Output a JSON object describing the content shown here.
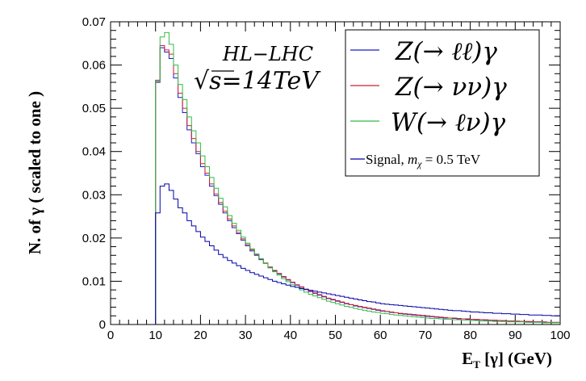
{
  "chart_data": {
    "type": "line",
    "style": "step-histogram",
    "title": "",
    "xlabel_main": "E",
    "xlabel_sub": "T",
    "xlabel_rest": " [γ] (GeV)",
    "ylabel": "N. of  γ  ( scaled to one )",
    "xlim": [
      0,
      100
    ],
    "ylim": [
      0,
      0.07
    ],
    "xticks": [
      "0",
      "10",
      "20",
      "30",
      "40",
      "50",
      "60",
      "70",
      "80",
      "90",
      "100"
    ],
    "yticks": [
      "0",
      "0.01",
      "0.02",
      "0.03",
      "0.04",
      "0.05",
      "0.06",
      "0.07"
    ],
    "annotation_line1": "HL−LHC",
    "annotation_sqrt": "√s",
    "annotation_eq": "=14TeV",
    "legend_position": "top-right",
    "series": [
      {
        "name": "Z(→ ℓℓ)γ",
        "color": "#1a1acc",
        "bin_width": 1,
        "x_start": 10,
        "values": [
          0.056,
          0.064,
          0.063,
          0.0615,
          0.057,
          0.0525,
          0.049,
          0.045,
          0.042,
          0.0395,
          0.0365,
          0.0345,
          0.032,
          0.0298,
          0.0278,
          0.0258,
          0.024,
          0.0224,
          0.021,
          0.0195,
          0.0182,
          0.017,
          0.016,
          0.015,
          0.0141,
          0.0132,
          0.0124,
          0.0117,
          0.011,
          0.0103,
          0.0097,
          0.0091,
          0.0086,
          0.0081,
          0.0076,
          0.0072,
          0.0068,
          0.0064,
          0.006,
          0.0057,
          0.0054,
          0.0051,
          0.0048,
          0.0046,
          0.0043,
          0.0041,
          0.0039,
          0.0037,
          0.0035,
          0.0033,
          0.0031,
          0.003,
          0.0028,
          0.0027,
          0.0025,
          0.0024,
          0.0023,
          0.0022,
          0.0021,
          0.002,
          0.0019,
          0.0018,
          0.0017,
          0.0016,
          0.0015,
          0.0015,
          0.0014,
          0.0013,
          0.0013,
          0.0012,
          0.0012,
          0.0011,
          0.0011,
          0.001,
          0.001,
          0.0009,
          0.0009,
          0.0008,
          0.0008,
          0.0008,
          0.0007,
          0.0007,
          0.0007,
          0.0006,
          0.0006,
          0.0006,
          0.0005,
          0.0005,
          0.0005,
          0.0005
        ]
      },
      {
        "name": "Z(→ νν)γ",
        "color": "#cc2233",
        "bin_width": 1,
        "x_start": 10,
        "values": [
          0.0565,
          0.0645,
          0.0635,
          0.0625,
          0.058,
          0.0535,
          0.05,
          0.046,
          0.043,
          0.04,
          0.0372,
          0.035,
          0.0325,
          0.0302,
          0.0282,
          0.0262,
          0.0244,
          0.0228,
          0.0213,
          0.0198,
          0.0185,
          0.0173,
          0.0162,
          0.0152,
          0.0142,
          0.0133,
          0.0125,
          0.0118,
          0.0111,
          0.0104,
          0.0098,
          0.0092,
          0.0087,
          0.0082,
          0.0077,
          0.0073,
          0.0069,
          0.0065,
          0.0061,
          0.0058,
          0.0055,
          0.0052,
          0.0049,
          0.0046,
          0.0044,
          0.0042,
          0.004,
          0.0038,
          0.0036,
          0.0034,
          0.0032,
          0.003,
          0.0029,
          0.0027,
          0.0026,
          0.0025,
          0.0024,
          0.0023,
          0.0022,
          0.0021,
          0.002,
          0.0019,
          0.0018,
          0.0017,
          0.0016,
          0.0015,
          0.0015,
          0.0014,
          0.0013,
          0.0013,
          0.0012,
          0.0012,
          0.0011,
          0.0011,
          0.001,
          0.001,
          0.0009,
          0.0009,
          0.0008,
          0.0008,
          0.0008,
          0.0007,
          0.0007,
          0.0007,
          0.0006,
          0.0006,
          0.0006,
          0.0005,
          0.0005,
          0.0005
        ]
      },
      {
        "name": "W(→ ℓν)γ",
        "color": "#33bb44",
        "bin_width": 1,
        "x_start": 10,
        "values": [
          0.0562,
          0.0665,
          0.0675,
          0.0648,
          0.06,
          0.0555,
          0.052,
          0.048,
          0.0448,
          0.042,
          0.039,
          0.0365,
          0.034,
          0.0315,
          0.0292,
          0.0272,
          0.0252,
          0.0234,
          0.0218,
          0.0202,
          0.0188,
          0.0175,
          0.0163,
          0.0152,
          0.0141,
          0.0131,
          0.0122,
          0.0114,
          0.0106,
          0.0099,
          0.0092,
          0.0086,
          0.008,
          0.0075,
          0.007,
          0.0066,
          0.0062,
          0.0058,
          0.0054,
          0.0051,
          0.0048,
          0.0045,
          0.0042,
          0.004,
          0.0037,
          0.0035,
          0.0033,
          0.0031,
          0.0029,
          0.0028,
          0.0026,
          0.0025,
          0.0023,
          0.0022,
          0.0021,
          0.002,
          0.0019,
          0.0018,
          0.0017,
          0.0016,
          0.0015,
          0.0014,
          0.0014,
          0.0013,
          0.0012,
          0.0012,
          0.0011,
          0.0011,
          0.001,
          0.001,
          0.0009,
          0.0009,
          0.0008,
          0.0008,
          0.0008,
          0.0007,
          0.0007,
          0.0007,
          0.0006,
          0.0006,
          0.0006,
          0.0006,
          0.0005,
          0.0005,
          0.0005,
          0.0005,
          0.0004,
          0.0004,
          0.0004,
          0.0004
        ]
      },
      {
        "name": "Signal, m_χ = 0.5 TeV",
        "legend_prefix": "Signal, ",
        "legend_m": "m",
        "legend_sub": "χ",
        "legend_suffix": " = 0.5 TeV",
        "color": "#0000aa",
        "bin_width": 1,
        "x_start": 10,
        "values": [
          0.0258,
          0.032,
          0.0325,
          0.031,
          0.029,
          0.027,
          0.0258,
          0.024,
          0.0228,
          0.0215,
          0.0202,
          0.0192,
          0.0182,
          0.0172,
          0.0162,
          0.0155,
          0.0148,
          0.0142,
          0.0136,
          0.013,
          0.0125,
          0.012,
          0.0116,
          0.0112,
          0.0108,
          0.0104,
          0.01,
          0.0097,
          0.0094,
          0.0091,
          0.0088,
          0.0086,
          0.0083,
          0.0081,
          0.0079,
          0.0077,
          0.0075,
          0.0073,
          0.0071,
          0.0069,
          0.0067,
          0.0065,
          0.0063,
          0.0061,
          0.0059,
          0.0057,
          0.0055,
          0.0053,
          0.0052,
          0.005,
          0.0048,
          0.0047,
          0.0046,
          0.0045,
          0.0044,
          0.0043,
          0.0042,
          0.0041,
          0.004,
          0.0039,
          0.0038,
          0.0037,
          0.0036,
          0.0035,
          0.0034,
          0.0033,
          0.0032,
          0.0032,
          0.0031,
          0.003,
          0.0029,
          0.0029,
          0.0028,
          0.0027,
          0.0027,
          0.0026,
          0.0026,
          0.0025,
          0.0025,
          0.0024,
          0.0024,
          0.0023,
          0.0023,
          0.0022,
          0.0022,
          0.0022,
          0.0021,
          0.0021,
          0.002,
          0.002
        ]
      }
    ]
  }
}
